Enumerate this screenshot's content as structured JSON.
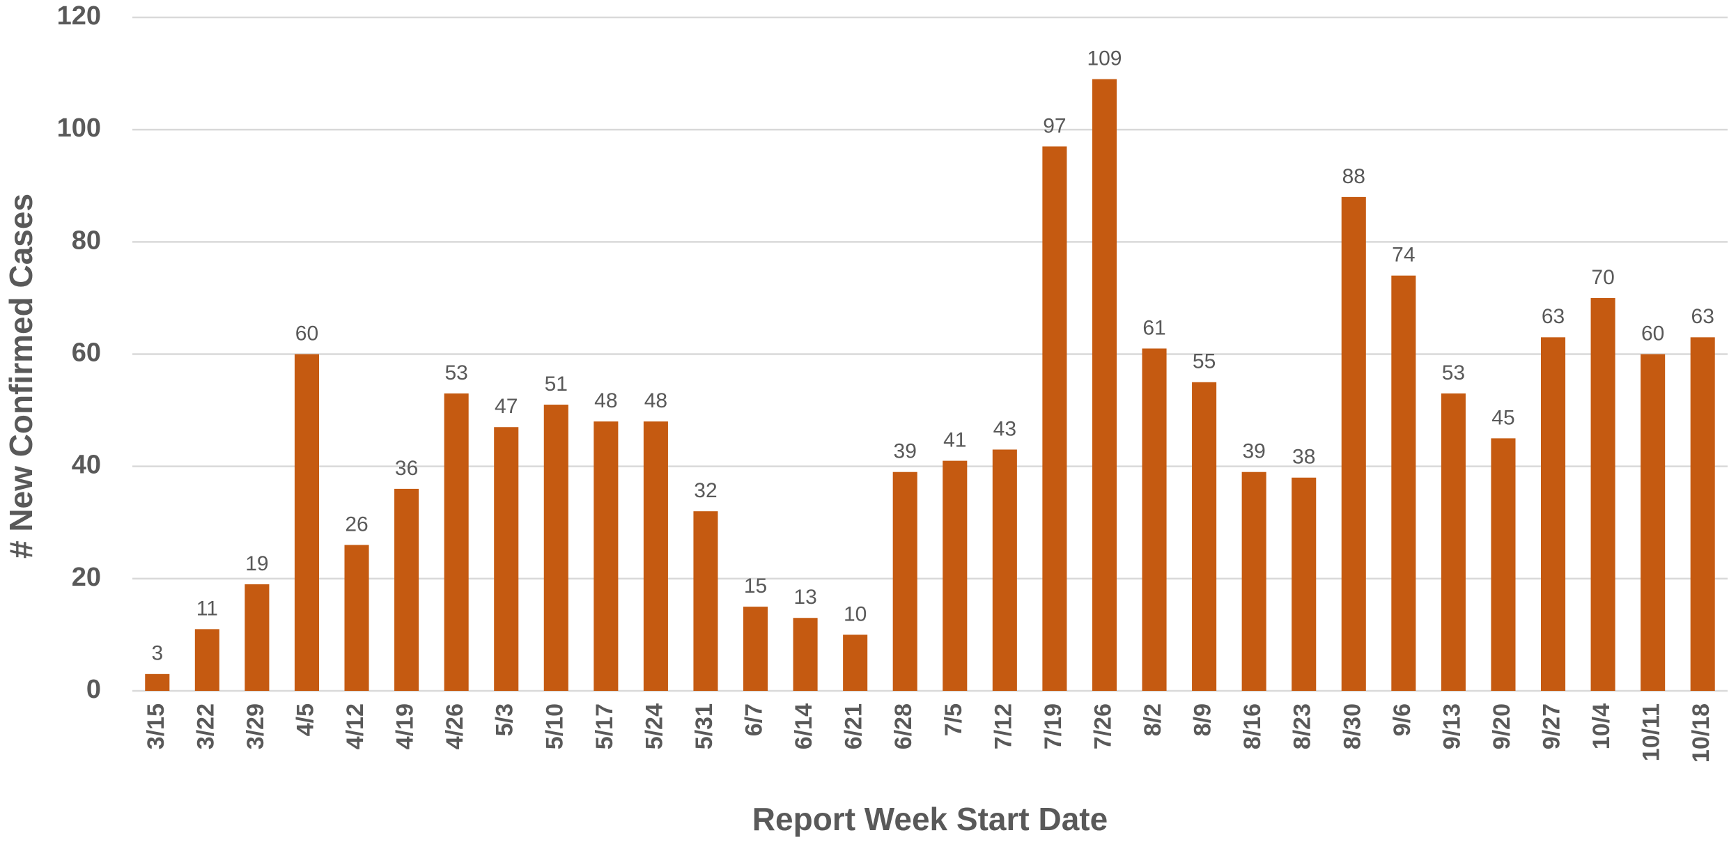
{
  "chart_data": {
    "type": "bar",
    "x_label": "Report Week Start Date",
    "y_label": "# New Confirmed Cases",
    "categories": [
      "3/15",
      "3/22",
      "3/29",
      "4/5",
      "4/12",
      "4/19",
      "4/26",
      "5/3",
      "5/10",
      "5/17",
      "5/24",
      "5/31",
      "6/7",
      "6/14",
      "6/21",
      "6/28",
      "7/5",
      "7/12",
      "7/19",
      "7/26",
      "8/2",
      "8/9",
      "8/16",
      "8/23",
      "8/30",
      "9/6",
      "9/13",
      "9/20",
      "9/27",
      "10/4",
      "10/11",
      "10/18"
    ],
    "values": [
      3,
      11,
      19,
      60,
      26,
      36,
      53,
      47,
      51,
      48,
      48,
      32,
      15,
      13,
      10,
      39,
      41,
      43,
      97,
      109,
      61,
      55,
      39,
      38,
      88,
      74,
      53,
      45,
      63,
      70,
      60,
      63
    ],
    "color": "#c55a11",
    "ylim": [
      0,
      120
    ],
    "yticks": [
      0,
      20,
      40,
      60,
      80,
      100,
      120
    ],
    "grid": true
  }
}
